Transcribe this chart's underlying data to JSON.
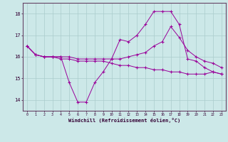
{
  "xlabel": "Windchill (Refroidissement éolien,°C)",
  "background_color": "#cce8e8",
  "grid_color": "#aacccc",
  "line_color": "#990099",
  "x_hours": [
    0,
    1,
    2,
    3,
    4,
    5,
    6,
    7,
    8,
    9,
    10,
    11,
    12,
    13,
    14,
    15,
    16,
    17,
    18,
    19,
    20,
    21,
    22,
    23
  ],
  "line1": [
    16.5,
    16.1,
    16.0,
    16.0,
    16.0,
    14.8,
    13.9,
    13.9,
    14.8,
    15.3,
    15.9,
    16.8,
    16.7,
    17.0,
    17.5,
    18.1,
    18.1,
    18.1,
    17.5,
    15.9,
    15.8,
    15.5,
    15.3,
    15.2
  ],
  "line2": [
    16.5,
    16.1,
    16.0,
    16.0,
    16.0,
    16.0,
    15.9,
    15.9,
    15.9,
    15.9,
    15.9,
    15.9,
    16.0,
    16.1,
    16.2,
    16.5,
    16.7,
    17.4,
    16.9,
    16.3,
    16.0,
    15.8,
    15.7,
    15.5
  ],
  "line3": [
    16.5,
    16.1,
    16.0,
    16.0,
    15.9,
    15.9,
    15.8,
    15.8,
    15.8,
    15.8,
    15.7,
    15.6,
    15.6,
    15.5,
    15.5,
    15.4,
    15.4,
    15.3,
    15.3,
    15.2,
    15.2,
    15.2,
    15.3,
    15.2
  ],
  "ylim": [
    13.5,
    18.5
  ],
  "yticks": [
    14,
    15,
    16,
    17,
    18
  ],
  "xticks": [
    0,
    1,
    2,
    3,
    4,
    5,
    6,
    7,
    8,
    9,
    10,
    11,
    12,
    13,
    14,
    15,
    16,
    17,
    18,
    19,
    20,
    21,
    22,
    23
  ]
}
